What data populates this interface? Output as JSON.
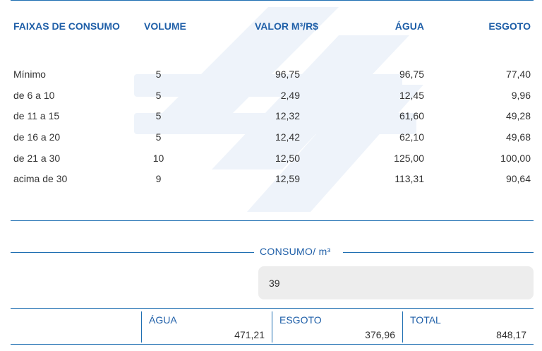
{
  "headers": {
    "faixas": "FAIXAS DE CONSUMO",
    "volume": "VOLUME",
    "valor": "VALOR M³/R$",
    "agua": "ÁGUA",
    "esgoto": "ESGOTO"
  },
  "rows": [
    {
      "faixa": "Mínimo",
      "volume": "5",
      "valor": "96,75",
      "agua": "96,75",
      "esgoto": "77,40"
    },
    {
      "faixa": "de 6 a 10",
      "volume": "5",
      "valor": "2,49",
      "agua": "12,45",
      "esgoto": "9,96"
    },
    {
      "faixa": "de 11 a 15",
      "volume": "5",
      "valor": "12,32",
      "agua": "61,60",
      "esgoto": "49,28"
    },
    {
      "faixa": "de 16 a 20",
      "volume": "5",
      "valor": "12,42",
      "agua": "62,10",
      "esgoto": "49,68"
    },
    {
      "faixa": "de 21 a 30",
      "volume": "10",
      "valor": "12,50",
      "agua": "125,00",
      "esgoto": "100,00"
    },
    {
      "faixa": "acima de 30",
      "volume": "9",
      "valor": "12,59",
      "agua": "113,31",
      "esgoto": "90,64"
    }
  ],
  "consumo": {
    "label": "CONSUMO/ m³",
    "value": "39"
  },
  "totals": {
    "agua_label": "ÁGUA",
    "agua_value": "471,21",
    "esgoto_label": "ESGOTO",
    "esgoto_value": "376,96",
    "total_label": "TOTAL",
    "total_value": "848,17"
  },
  "colors": {
    "accent": "#1f5fa8",
    "rule": "#1f6fb2",
    "input_bg": "#ededed",
    "watermark": "#eef3fa"
  },
  "icons": {
    "watermark": "brand-logo-watermark-icon"
  }
}
